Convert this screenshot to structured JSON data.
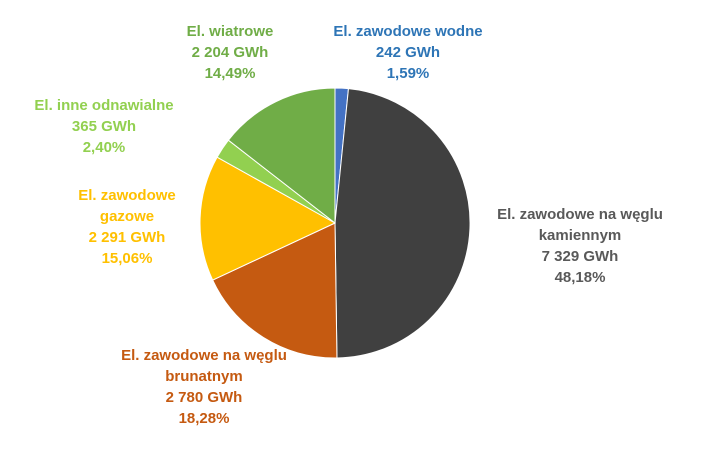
{
  "chart_data": {
    "type": "pie",
    "title": "",
    "slices": [
      {
        "label_lines": [
          "El. zawodowe wodne"
        ],
        "value": "242 GWh",
        "percent": "1,59%",
        "gwh": 242,
        "pct": 1.59,
        "color": "#4472c4",
        "label_color": "#2e75b6"
      },
      {
        "label_lines": [
          "El. zawodowe na węglu",
          "kamiennym"
        ],
        "value": "7 329 GWh",
        "percent": "48,18%",
        "gwh": 7329,
        "pct": 48.18,
        "color": "#404040",
        "label_color": "#595959"
      },
      {
        "label_lines": [
          "El. zawodowe na węglu",
          "brunatnym"
        ],
        "value": "2 780 GWh",
        "percent": "18,28%",
        "gwh": 2780,
        "pct": 18.28,
        "color": "#c55a11",
        "label_color": "#c55a11"
      },
      {
        "label_lines": [
          "El. zawodowe",
          "gazowe"
        ],
        "value": "2 291 GWh",
        "percent": "15,06%",
        "gwh": 2291,
        "pct": 15.06,
        "color": "#ffc000",
        "label_color": "#ffc000"
      },
      {
        "label_lines": [
          "El. inne odnawialne"
        ],
        "value": "365 GWh",
        "percent": "2,40%",
        "gwh": 365,
        "pct": 2.4,
        "color": "#92d050",
        "label_color": "#92d050"
      },
      {
        "label_lines": [
          "El. wiatrowe"
        ],
        "value": "2 204 GWh",
        "percent": "14,49%",
        "gwh": 2204,
        "pct": 14.49,
        "color": "#70ad47",
        "label_color": "#70ad47"
      }
    ]
  }
}
